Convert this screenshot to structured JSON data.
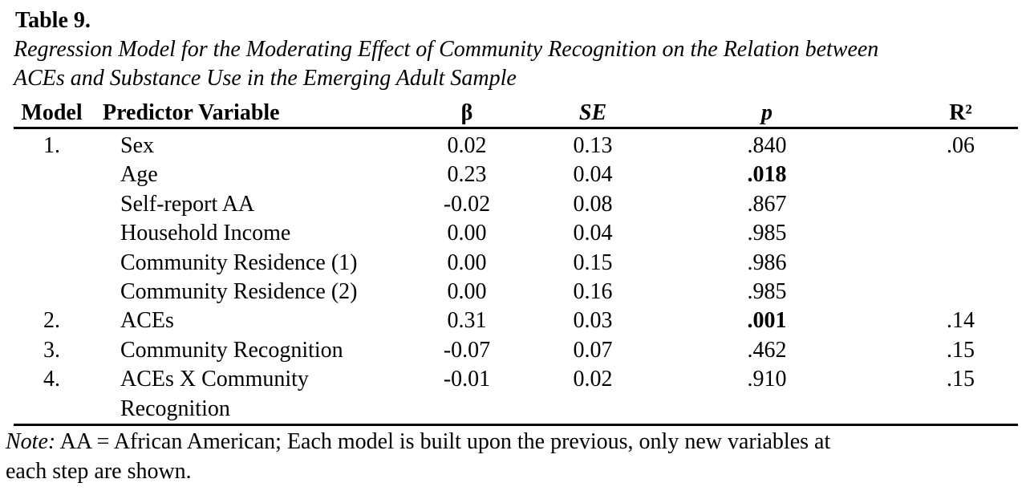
{
  "title": "Table 9.",
  "caption_lines": [
    "Regression Model for the Moderating Effect of Community Recognition on the Relation between",
    "ACEs and Substance Use in the Emerging Adult Sample"
  ],
  "columns": {
    "model": "Model",
    "predictor": "Predictor Variable",
    "beta": "β",
    "se": "SE",
    "p": "p",
    "r2": "R²"
  },
  "rows": [
    {
      "model": "1.",
      "predictor": "Sex",
      "beta": "0.02",
      "se": "0.13",
      "p": ".840",
      "p_bold": false,
      "r2": ".06"
    },
    {
      "model": "",
      "predictor": "Age",
      "beta": "0.23",
      "se": "0.04",
      "p": ".018",
      "p_bold": true,
      "r2": ""
    },
    {
      "model": "",
      "predictor": "Self-report AA",
      "beta": "-0.02",
      "se": "0.08",
      "p": ".867",
      "p_bold": false,
      "r2": ""
    },
    {
      "model": "",
      "predictor": "Household Income",
      "beta": "0.00",
      "se": "0.04",
      "p": ".985",
      "p_bold": false,
      "r2": ""
    },
    {
      "model": "",
      "predictor": "Community Residence (1)",
      "beta": "0.00",
      "se": "0.15",
      "p": ".986",
      "p_bold": false,
      "r2": ""
    },
    {
      "model": "",
      "predictor": "Community Residence (2)",
      "beta": "0.00",
      "se": "0.16",
      "p": ".985",
      "p_bold": false,
      "r2": ""
    },
    {
      "model": "2.",
      "predictor": "ACEs",
      "beta": "0.31",
      "se": "0.03",
      "p": ".001",
      "p_bold": true,
      "r2": ".14"
    },
    {
      "model": "3.",
      "predictor": "Community Recognition",
      "beta": "-0.07",
      "se": "0.07",
      "p": ".462",
      "p_bold": false,
      "r2": ".15"
    },
    {
      "model": "4.",
      "predictor": "ACEs X Community",
      "predictor_line2": "Recognition",
      "beta": "-0.01",
      "se": "0.02",
      "p": ".910",
      "p_bold": false,
      "r2": ".15"
    }
  ],
  "note": {
    "prefix": "Note:",
    "line1": " AA = African American; Each model is built upon the previous, only new variables at",
    "line2": "each step are shown."
  }
}
